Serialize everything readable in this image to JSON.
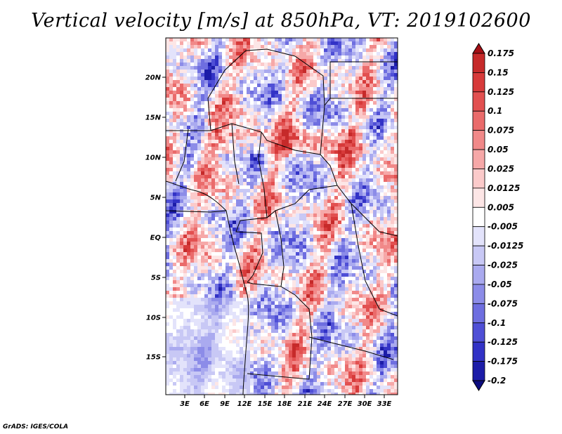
{
  "title": "Vertical velocity [m/s] at 850hPa, VT: 2019102600",
  "footer": "GrADS: IGES/COLA",
  "map": {
    "lat_labels": [
      "20N",
      "15N",
      "10N",
      "5N",
      "EQ",
      "5S",
      "10S",
      "15S"
    ],
    "lon_labels": [
      "3E",
      "6E",
      "9E",
      "12E",
      "15E",
      "18E",
      "21E",
      "24E",
      "27E",
      "30E",
      "33E"
    ]
  },
  "colorbar": {
    "labels": [
      "0.175",
      "0.15",
      "0.125",
      "0.1",
      "0.075",
      "0.05",
      "0.025",
      "0.0125",
      "0.005",
      "-0.005",
      "-0.0125",
      "-0.025",
      "-0.05",
      "-0.075",
      "-0.1",
      "-0.125",
      "-0.175",
      "-0.2"
    ],
    "colors": [
      "#a50f15",
      "#c62a2a",
      "#d73a3a",
      "#e25050",
      "#ea6b6b",
      "#f18989",
      "#f6a8a8",
      "#fbcaca",
      "#fde6e6",
      "#ffffff",
      "#e3e3fb",
      "#c8c8f5",
      "#aaaaef",
      "#8c8ce8",
      "#6e6ee0",
      "#4f4fd6",
      "#3232c6",
      "#1c1ca8",
      "#0c0c80"
    ]
  }
}
